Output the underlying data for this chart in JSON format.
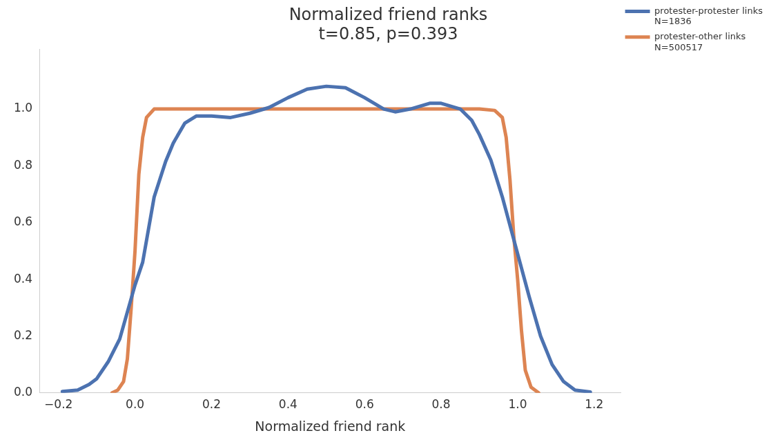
{
  "chart_data": {
    "type": "line",
    "title": "Normalized friend ranks\nt=0.85, p=0.393",
    "xlabel": "Normalized friend rank",
    "xlim": [
      -0.25,
      1.27
    ],
    "xticks": [
      {
        "value": -0.2,
        "label": "−0.2"
      },
      {
        "value": 0,
        "label": "0.0"
      },
      {
        "value": 0.2,
        "label": "0.2"
      },
      {
        "value": 0.4,
        "label": "0.4"
      },
      {
        "value": 0.6,
        "label": "0.6"
      },
      {
        "value": 0.8,
        "label": "0.8"
      },
      {
        "value": 1,
        "label": "1.0"
      },
      {
        "value": 1.2,
        "label": "1.2"
      }
    ],
    "ylim": [
      0,
      1.21
    ],
    "yticks": [
      {
        "value": 0,
        "label": "0.0"
      },
      {
        "value": 0.2,
        "label": "0.2"
      },
      {
        "value": 0.4,
        "label": "0.4"
      },
      {
        "value": 0.6,
        "label": "0.6"
      },
      {
        "value": 0.8,
        "label": "0.8"
      },
      {
        "value": 1,
        "label": "1.0"
      }
    ],
    "legend": "top right",
    "line_style": "solid",
    "series": [
      {
        "name": "protester-protester links\nN=1836",
        "color": "#4c72b0",
        "x": [
          -0.19,
          -0.15,
          -0.12,
          -0.1,
          -0.07,
          -0.04,
          0,
          0.02,
          0.05,
          0.08,
          0.1,
          0.13,
          0.16,
          0.2,
          0.25,
          0.3,
          0.35,
          0.4,
          0.45,
          0.5,
          0.55,
          0.6,
          0.65,
          0.68,
          0.72,
          0.77,
          0.8,
          0.85,
          0.88,
          0.9,
          0.93,
          0.96,
          1,
          1.03,
          1.06,
          1.09,
          1.12,
          1.15,
          1.19
        ],
        "values": [
          0.005,
          0.01,
          0.03,
          0.05,
          0.11,
          0.19,
          0.38,
          0.46,
          0.69,
          0.815,
          0.88,
          0.95,
          0.975,
          0.975,
          0.97,
          0.985,
          1.005,
          1.04,
          1.07,
          1.08,
          1.075,
          1.04,
          1,
          0.99,
          1,
          1.02,
          1.02,
          1,
          0.96,
          0.91,
          0.82,
          0.69,
          0.49,
          0.34,
          0.2,
          0.1,
          0.04,
          0.01,
          0.003
        ]
      },
      {
        "name": "protester-other links\nN=500517",
        "color": "#dd8452",
        "x": [
          -0.06,
          -0.045,
          -0.03,
          -0.02,
          -0.01,
          0,
          0.01,
          0.02,
          0.03,
          0.05,
          0.1,
          0.3,
          0.5,
          0.7,
          0.9,
          0.94,
          0.96,
          0.97,
          0.98,
          0.99,
          1,
          1.01,
          1.02,
          1.035,
          1.055
        ],
        "values": [
          0,
          0.01,
          0.04,
          0.12,
          0.3,
          0.5,
          0.77,
          0.9,
          0.97,
          1,
          1,
          1,
          1,
          1,
          1,
          0.995,
          0.97,
          0.9,
          0.75,
          0.55,
          0.4,
          0.22,
          0.08,
          0.02,
          0
        ]
      }
    ]
  }
}
